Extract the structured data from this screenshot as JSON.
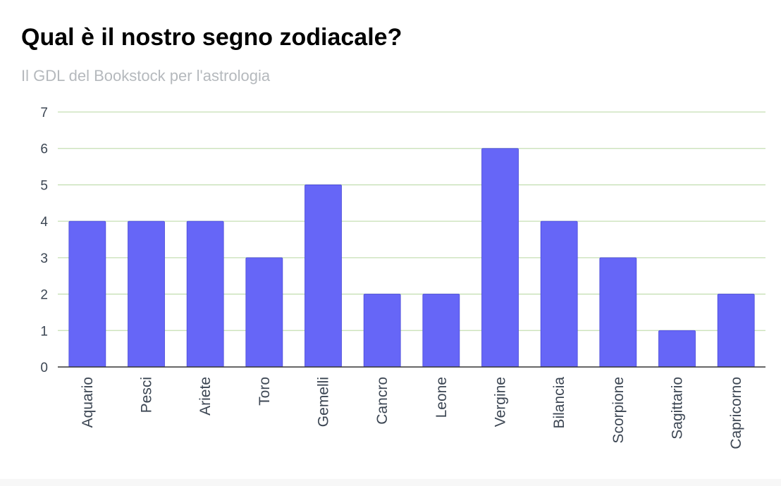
{
  "chart_data": {
    "type": "bar",
    "title": "Qual è il nostro segno zodiacale?",
    "subtitle": "Il GDL del Bookstock per l'astrologia",
    "xlabel": "",
    "ylabel": "",
    "categories": [
      "Aquario",
      "Pesci",
      "Ariete",
      "Toro",
      "Gemelli",
      "Cancro",
      "Leone",
      "Vergine",
      "Bilancia",
      "Scorpione",
      "Sagittario",
      "Capricorno"
    ],
    "values": [
      4,
      4,
      4,
      3,
      5,
      2,
      2,
      6,
      4,
      3,
      1,
      2
    ],
    "ylim": [
      0,
      7
    ],
    "yticks": [
      "0",
      "1",
      "2",
      "3",
      "4",
      "5",
      "6",
      "7"
    ],
    "grid": true,
    "legend": "none",
    "colors": {
      "bar": "#6666f7",
      "grid": "#c5dfb3",
      "axis": "#333333",
      "tick_text": "#3c4653",
      "title": "#000000",
      "subtitle": "#b5b9bd"
    }
  }
}
